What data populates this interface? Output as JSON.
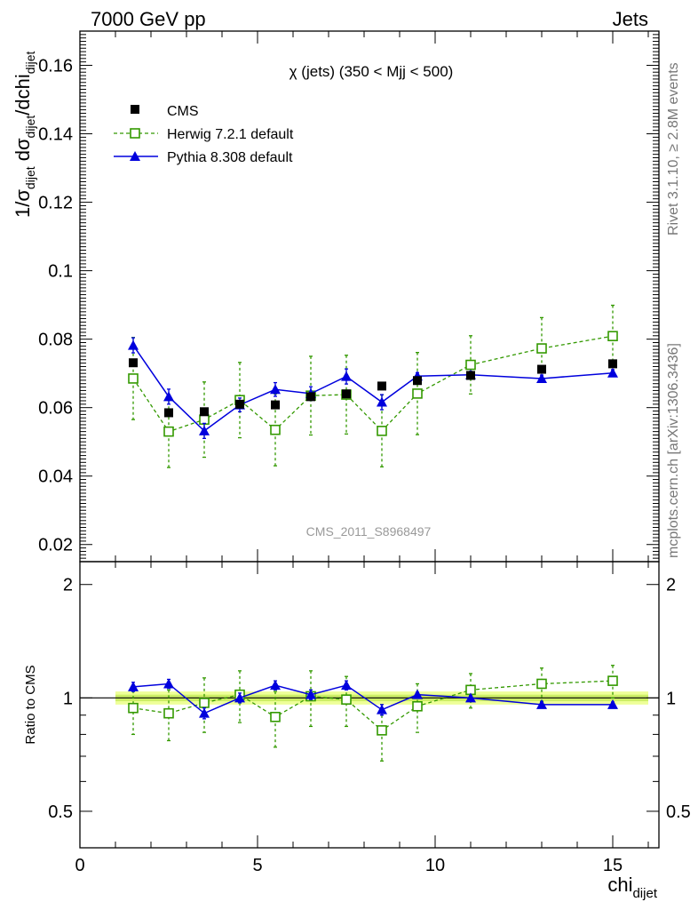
{
  "header": {
    "left": "7000 GeV pp",
    "right": "Jets"
  },
  "side_labels": {
    "rivet": "Rivet 3.1.10, ≥ 2.8M events",
    "mcplots": "mcplots.cern.ch [arXiv:1306.3436]"
  },
  "colors": {
    "cms": "#000000",
    "herwig": "#339900",
    "pythia": "#0000dd",
    "band_outer": "#eeff99",
    "band_inner": "#ccee66"
  },
  "chart_data": [
    {
      "type": "scatter",
      "panel": "main",
      "title": "χ (jets) (350 < Mjj <  500)",
      "ylabel": "1/σ_dijet dσ_dijet/dchi_dijet",
      "watermark": "CMS_2011_S8968497",
      "xlim": [
        0,
        16.3
      ],
      "ylim": [
        0.015,
        0.17
      ],
      "yticks": [
        "0.02",
        "0.04",
        "0.06",
        "0.08",
        "0.1",
        "0.12",
        "0.14",
        "0.16"
      ],
      "legend_position": "top-left",
      "x": [
        1.5,
        2.5,
        3.5,
        4.5,
        5.5,
        6.5,
        7.5,
        8.5,
        9.5,
        11,
        13,
        15
      ],
      "series": [
        {
          "name": "CMS",
          "style": "black-square-markers",
          "values": [
            0.0731,
            0.0585,
            0.0588,
            0.061,
            0.0608,
            0.0632,
            0.064,
            0.0663,
            0.0679,
            0.0694,
            0.0712,
            0.0728
          ],
          "errors": [
            0.0008,
            0.0008,
            0.0008,
            0.0008,
            0.0008,
            0.0008,
            0.0008,
            0.0008,
            0.0008,
            0.0008,
            0.0008,
            0.0008
          ]
        },
        {
          "name": "Herwig 7.2.1 default",
          "style": "green-open-square-dashed",
          "values": [
            0.0685,
            0.053,
            0.0565,
            0.0622,
            0.0535,
            0.0635,
            0.0638,
            0.0532,
            0.0641,
            0.0725,
            0.0773,
            0.0809
          ],
          "errors": [
            0.012,
            0.0105,
            0.011,
            0.011,
            0.0105,
            0.0115,
            0.0115,
            0.0105,
            0.012,
            0.0085,
            0.009,
            0.009
          ]
        },
        {
          "name": "Pythia 8.308 default",
          "style": "blue-filled-triangle-solid",
          "values": [
            0.0782,
            0.0632,
            0.0532,
            0.0608,
            0.0653,
            0.0641,
            0.0691,
            0.0616,
            0.0692,
            0.0696,
            0.0685,
            0.0701
          ],
          "errors": [
            0.0022,
            0.0022,
            0.0022,
            0.002,
            0.002,
            0.002,
            0.0022,
            0.0022,
            0.001,
            0.001,
            0.001,
            0.001
          ]
        }
      ]
    },
    {
      "type": "scatter",
      "panel": "ratio",
      "xlabel": "chi_dijet",
      "ylabel": "Ratio to CMS",
      "xlim": [
        0,
        16.3
      ],
      "ylim": [
        0.4,
        2.3
      ],
      "yscale": "log",
      "xticks": [
        "0",
        "5",
        "10",
        "15"
      ],
      "yticks": [
        "0.5",
        "1",
        "2"
      ],
      "reference_band": {
        "inner": 0.02,
        "outer": 0.04
      },
      "x": [
        1.5,
        2.5,
        3.5,
        4.5,
        5.5,
        6.5,
        7.5,
        8.5,
        9.5,
        11,
        13,
        15
      ],
      "series": [
        {
          "name": "Herwig 7.2.1 default",
          "values": [
            0.94,
            0.91,
            0.97,
            1.02,
            0.89,
            1.01,
            0.99,
            0.82,
            0.95,
            1.05,
            1.09,
            1.11
          ],
          "errors": [
            0.14,
            0.14,
            0.16,
            0.16,
            0.15,
            0.17,
            0.15,
            0.14,
            0.14,
            0.11,
            0.11,
            0.11
          ]
        },
        {
          "name": "Pythia 8.308 default",
          "values": [
            1.07,
            1.09,
            0.91,
            1.0,
            1.08,
            1.02,
            1.08,
            0.93,
            1.02,
            1.0,
            0.96,
            0.96
          ],
          "errors": [
            0.03,
            0.03,
            0.03,
            0.03,
            0.03,
            0.03,
            0.03,
            0.03,
            0.015,
            0.015,
            0.015,
            0.015
          ]
        }
      ]
    }
  ]
}
